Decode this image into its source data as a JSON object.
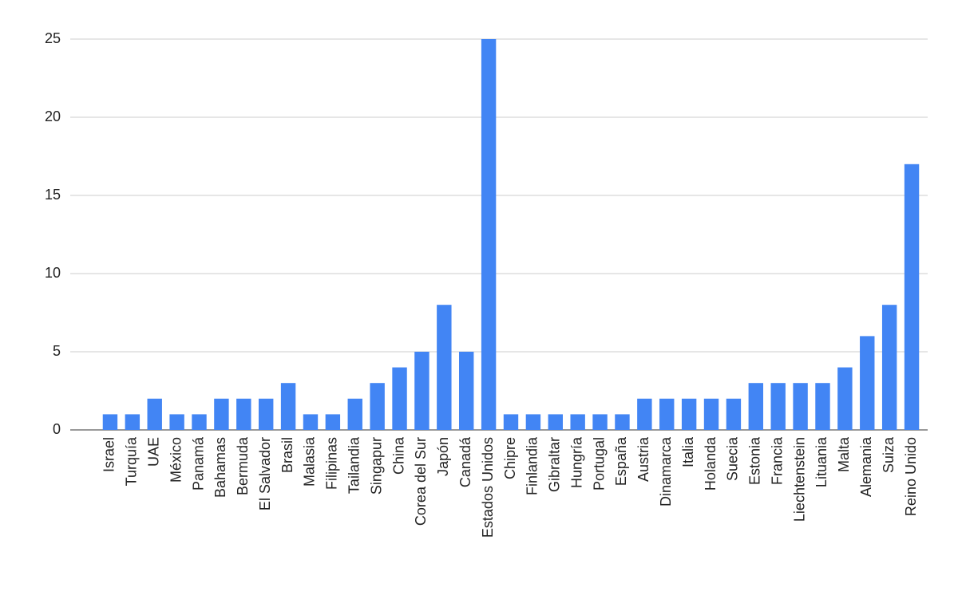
{
  "chart_data": {
    "type": "bar",
    "categories": [
      "Israel",
      "Turquía",
      "UAE",
      "México",
      "Panamá",
      "Bahamas",
      "Bermuda",
      "El Salvador",
      "Brasil",
      "Malasia",
      "Filipinas",
      "Tailandia",
      "Singapur",
      "China",
      "Corea del Sur",
      "Japón",
      "Canadá",
      "Estados Unidos",
      "Chipre",
      "Finlandia",
      "Gibraltar",
      "Hungría",
      "Portugal",
      "España",
      "Austria",
      "Dinamarca",
      "Italia",
      "Holanda",
      "Suecia",
      "Estonia",
      "Francia",
      "Liechtenstein",
      "Lituania",
      "Malta",
      "Alemania",
      "Suiza",
      "Reino Unido"
    ],
    "values": [
      1,
      1,
      2,
      1,
      1,
      2,
      2,
      2,
      3,
      1,
      1,
      2,
      3,
      4,
      5,
      8,
      5,
      25,
      1,
      1,
      1,
      1,
      1,
      1,
      2,
      2,
      2,
      2,
      2,
      3,
      3,
      3,
      3,
      4,
      6,
      8,
      17
    ],
    "color": "#4285f4",
    "ylim": [
      0,
      25
    ],
    "yticks": [
      0,
      5,
      10,
      15,
      20,
      25
    ],
    "grid": true
  }
}
